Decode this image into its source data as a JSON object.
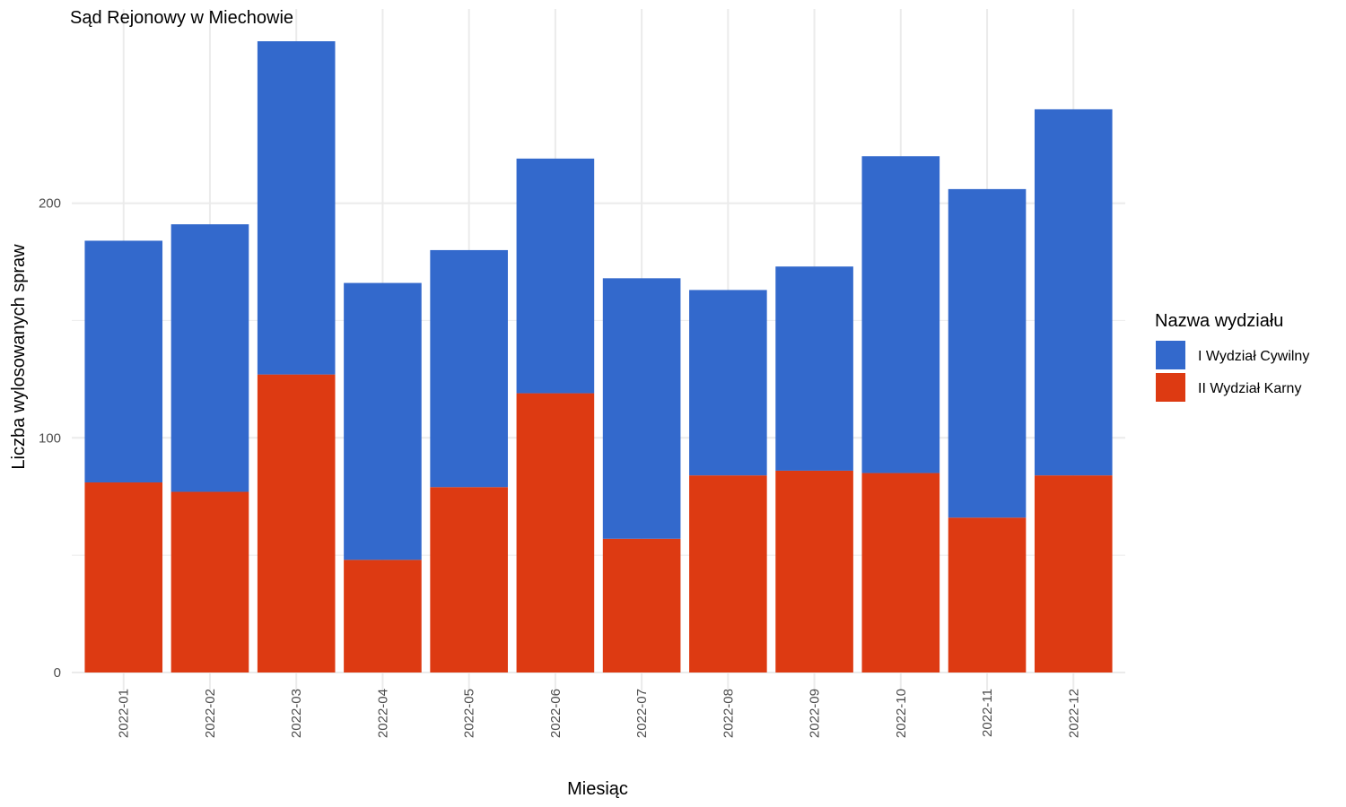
{
  "chart_data": {
    "type": "bar",
    "stacked": true,
    "title": "Sąd Rejonowy w Miechowie",
    "xlabel": "Miesiąc",
    "ylabel": "Liczba wylosowanych spraw",
    "categories": [
      "2022-01",
      "2022-02",
      "2022-03",
      "2022-04",
      "2022-05",
      "2022-06",
      "2022-07",
      "2022-08",
      "2022-09",
      "2022-10",
      "2022-11",
      "2022-12"
    ],
    "ylim": [
      0,
      269
    ],
    "yticks": [
      0,
      100,
      200
    ],
    "grid": true,
    "legend": {
      "title": "Nazwa wydziału",
      "position": "right"
    },
    "series": [
      {
        "name": "II Wydział Karny",
        "color": "#dd3a12",
        "values": [
          81,
          77,
          127,
          48,
          79,
          119,
          57,
          84,
          86,
          85,
          66,
          84
        ]
      },
      {
        "name": "I Wydział Cywilny",
        "color": "#3369cc",
        "values": [
          103,
          114,
          142,
          118,
          101,
          100,
          111,
          79,
          87,
          135,
          140,
          156
        ]
      }
    ],
    "legend_order": [
      "I Wydział Cywilny",
      "II Wydział Karny"
    ]
  }
}
